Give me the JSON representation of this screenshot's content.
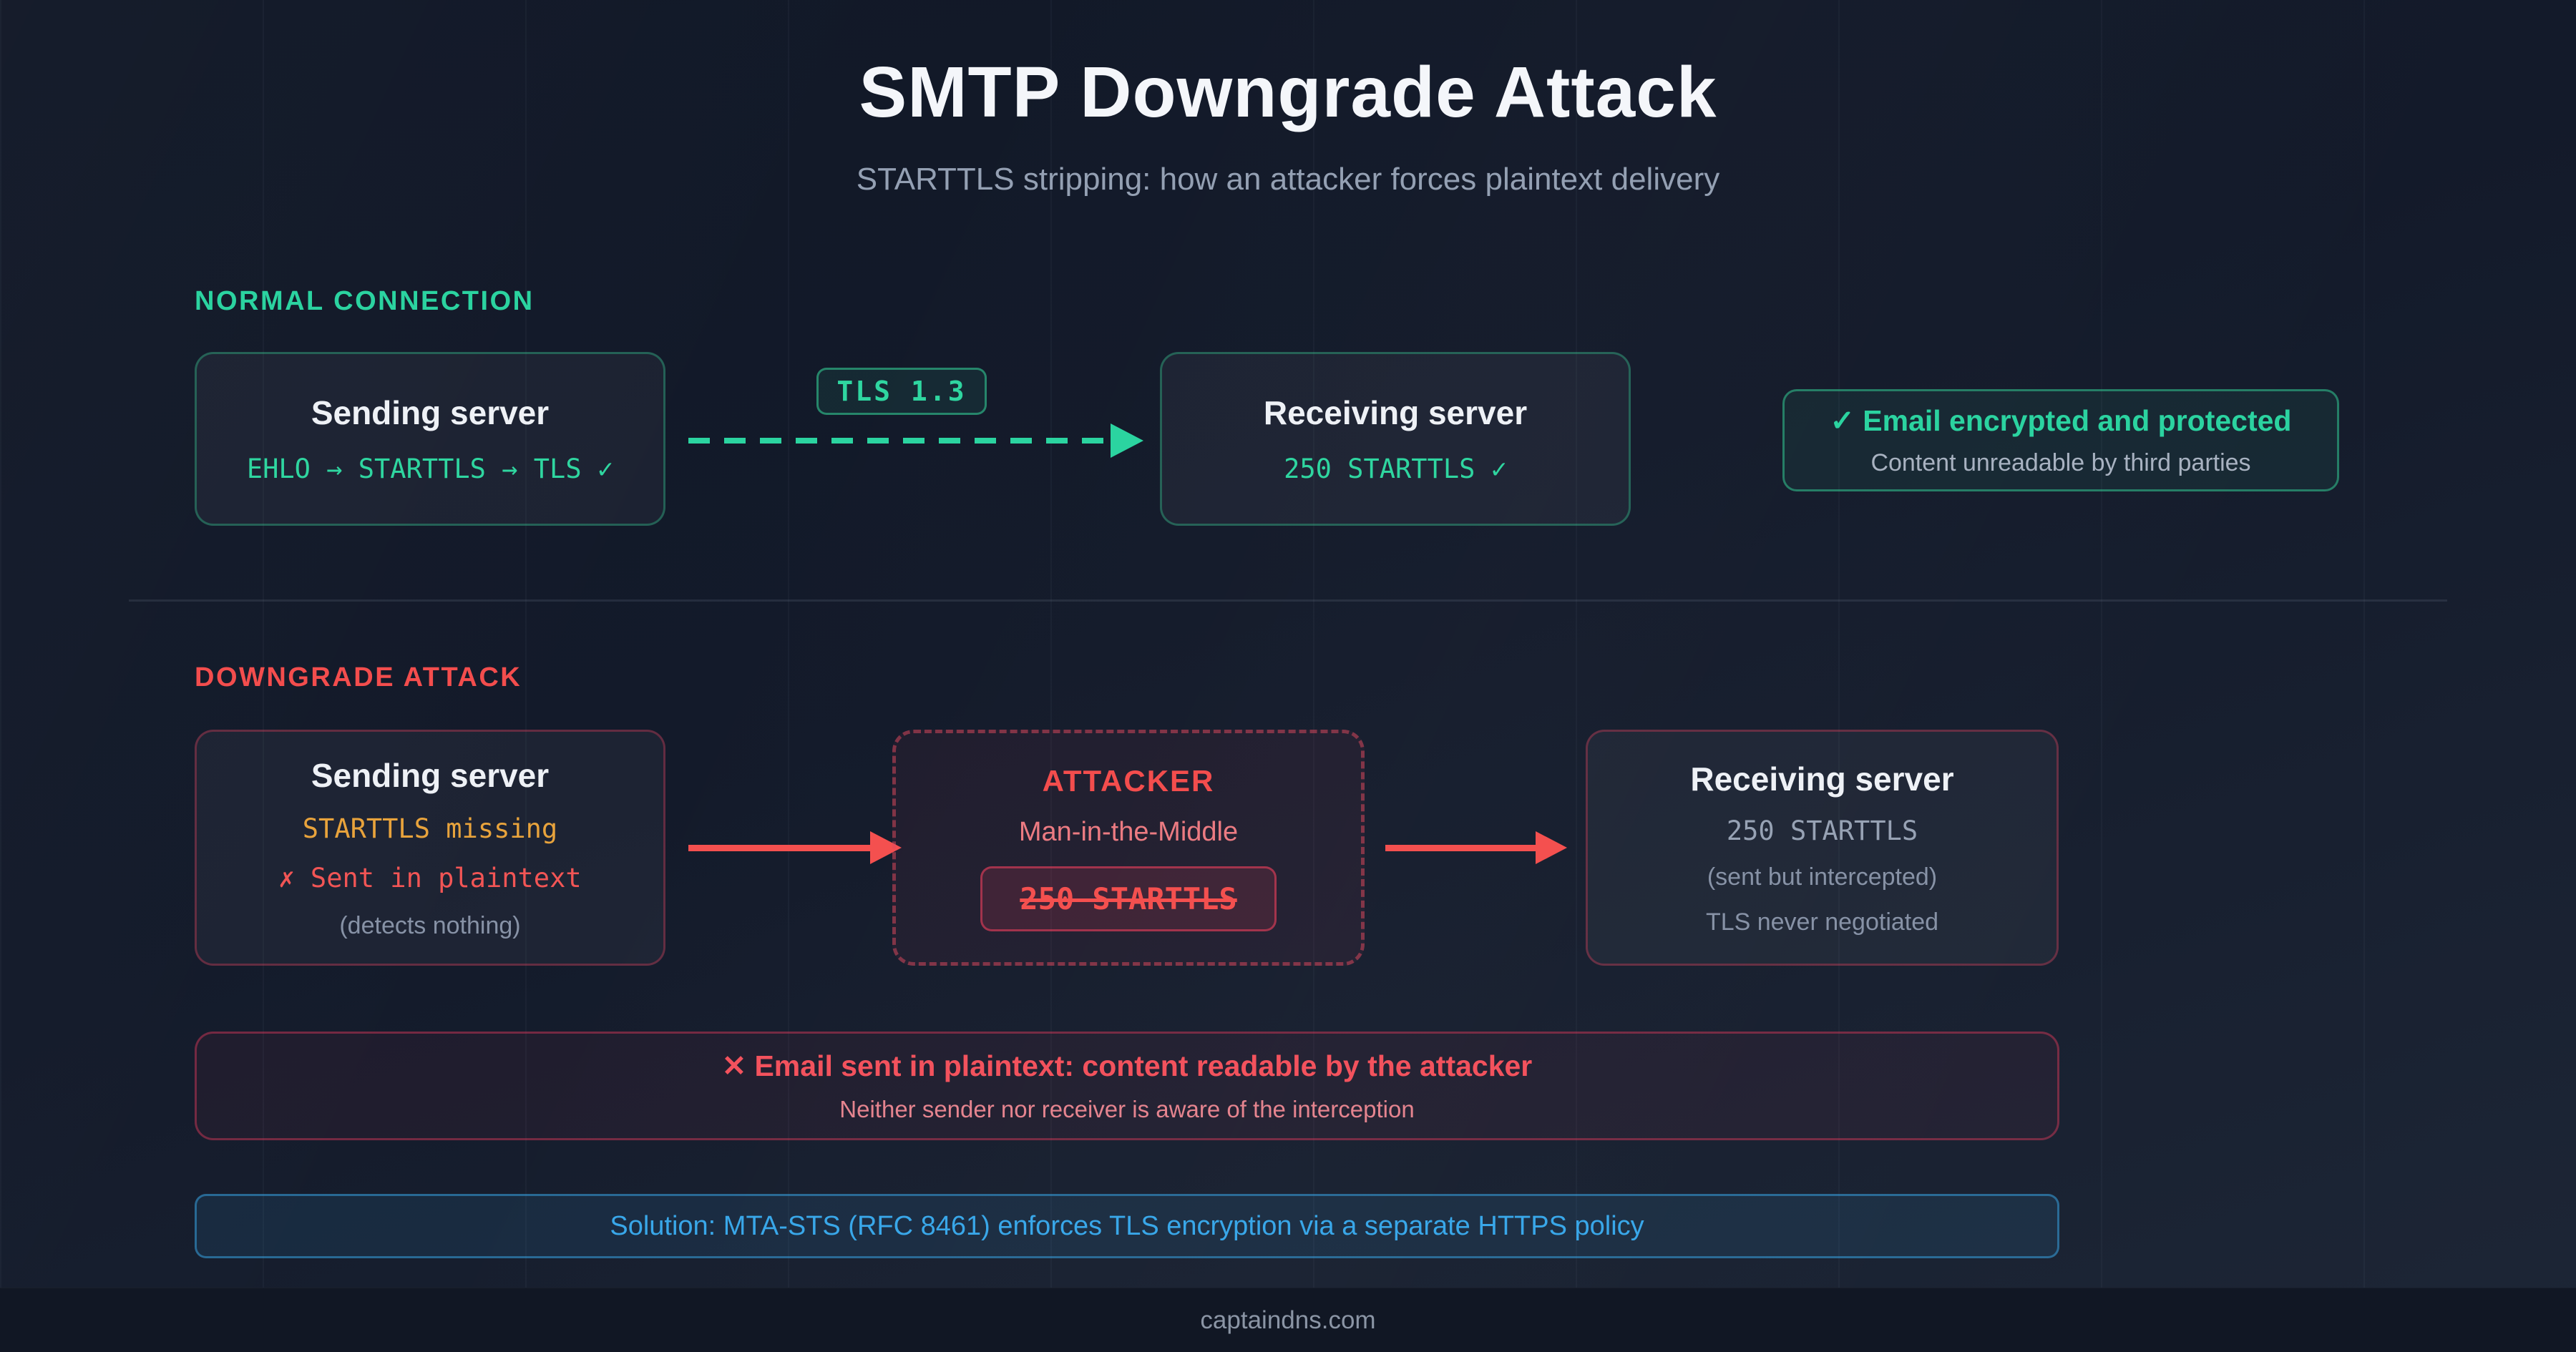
{
  "header": {
    "title": "SMTP Downgrade Attack",
    "subtitle": "STARTTLS stripping: how an attacker forces plaintext delivery"
  },
  "normal": {
    "label": "NORMAL CONNECTION",
    "sending": {
      "title": "Sending server",
      "code": "EHLO → STARTTLS → TLS ✓"
    },
    "tls_badge": "TLS 1.3",
    "receiving": {
      "title": "Receiving server",
      "code": "250 STARTTLS ✓"
    },
    "status": {
      "title": "✓ Email encrypted and protected",
      "subtitle": "Content unreadable by third parties"
    }
  },
  "attack": {
    "label": "DOWNGRADE ATTACK",
    "sending": {
      "title": "Sending server",
      "starttls": "STARTTLS missing",
      "plaintext": "✗ Sent in plaintext",
      "note": "(detects nothing)"
    },
    "attacker": {
      "title": "ATTACKER",
      "subtitle": "Man-in-the-Middle",
      "stripped_reply": "250 STARTTLS"
    },
    "receiving": {
      "title": "Receiving server",
      "reply": "250 STARTTLS",
      "note1": "(sent but intercepted)",
      "note2": "TLS never negotiated"
    },
    "warning": {
      "title": "✕ Email sent in plaintext: content readable by the attacker",
      "subtitle": "Neither sender nor receiver is aware of the interception"
    },
    "solution": "Solution: MTA-STS (RFC 8461) enforces TLS encryption via a separate HTTPS policy"
  },
  "footer": {
    "text": "captaindns.com"
  },
  "colors": {
    "background": "#131a2a",
    "accent_green": "#2bd3a0",
    "accent_red": "#f34d4d",
    "accent_amber": "#e8a33c",
    "accent_blue": "#39a7e9",
    "text_primary": "#eef1f6",
    "text_muted": "#8792a6"
  }
}
